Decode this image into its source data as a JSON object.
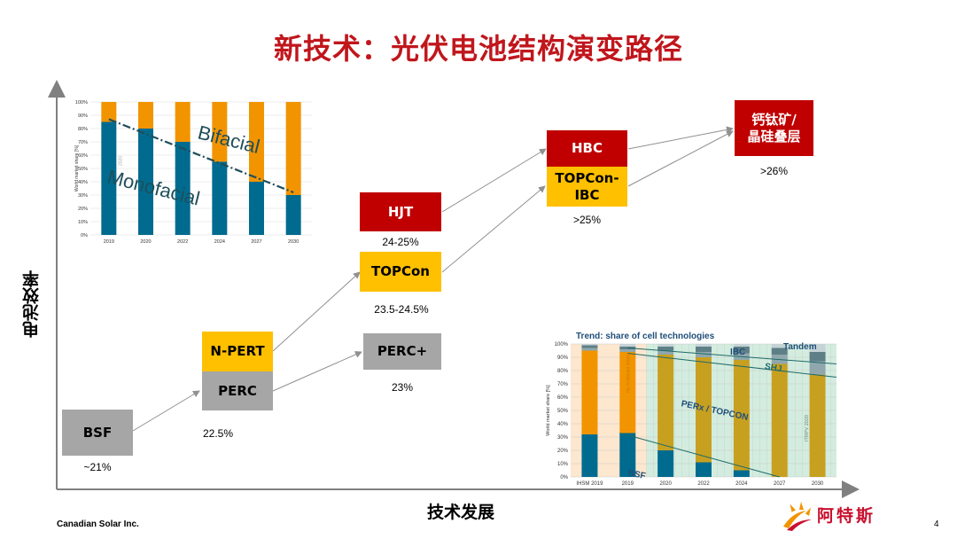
{
  "title": "新技术：光伏电池结构演变路径",
  "axes": {
    "y_label": "电池效率",
    "x_label": "技术发展"
  },
  "technologies": [
    {
      "id": "bsf",
      "label": "BSF",
      "color": "gray"
    },
    {
      "id": "n-pert",
      "label": "N-PERT",
      "color": "orange"
    },
    {
      "id": "perc",
      "label": "PERC",
      "color": "gray"
    },
    {
      "id": "hjt",
      "label": "HJT",
      "color": "red"
    },
    {
      "id": "topcon",
      "label": "TOPCon",
      "color": "orange"
    },
    {
      "id": "perc-plus",
      "label": "PERC+",
      "color": "gray"
    },
    {
      "id": "hbc",
      "label": "HBC",
      "color": "red"
    },
    {
      "id": "topcon-ibc",
      "label": "TOPCon-\nIBC",
      "color": "orange"
    },
    {
      "id": "perovskite",
      "label": "钙钛矿/\n晶硅叠层",
      "color": "red"
    }
  ],
  "efficiencies": {
    "bsf": "~21%",
    "perc": "22.5%",
    "hjt": "24-25%",
    "topcon": "23.5-24.5%",
    "perc_plus": "23%",
    "hbc": ">25%",
    "perovskite": ">26%"
  },
  "colors": {
    "title": "#c0161c",
    "gray": "#a6a6a6",
    "orange": "#ffc000",
    "red": "#c00000",
    "teal": "#006b8f",
    "chart_orange": "#f29400"
  },
  "inset_bifacial": {
    "chart_data": {
      "type": "bar",
      "categories": [
        "2019",
        "2020",
        "2022",
        "2024",
        "2027",
        "2030"
      ],
      "series": [
        {
          "name": "Monofacial",
          "values": [
            85,
            80,
            70,
            55,
            40,
            30
          ]
        },
        {
          "name": "Bifacial",
          "values": [
            15,
            20,
            30,
            45,
            60,
            70
          ]
        }
      ],
      "ylabel": "World market share [%]",
      "yticks": [
        "0%",
        "10%",
        "20%",
        "30%",
        "40%",
        "50%",
        "60%",
        "70%",
        "80%",
        "90%",
        "100%"
      ],
      "ylim": [
        0,
        100
      ],
      "annotations": [
        "Bifacial",
        "Monofacial"
      ],
      "watermark": "2020"
    }
  },
  "inset_technologies": {
    "chart_data": {
      "type": "bar",
      "title": "Trend: share of cell technologies",
      "categories": [
        "IHSM 2019",
        "2019",
        "2020",
        "2022",
        "2024",
        "2027",
        "2030"
      ],
      "series": [
        {
          "name": "BSF",
          "values": [
            32,
            33,
            20,
            11,
            5,
            0,
            0
          ]
        },
        {
          "name": "PERx / TOPCON",
          "values": [
            63,
            61,
            72,
            79,
            83,
            85,
            77
          ]
        },
        {
          "name": "SHJ",
          "values": [
            2,
            2,
            3,
            4,
            5,
            7,
            10
          ]
        },
        {
          "name": "IBC",
          "values": [
            2,
            2,
            3,
            4,
            5,
            5,
            7
          ]
        },
        {
          "name": "Tandem",
          "values": [
            1,
            2,
            2,
            2,
            2,
            3,
            6
          ]
        }
      ],
      "ylabel": "World market share [%]",
      "yticks": [
        "0%",
        "10%",
        "20%",
        "30%",
        "40%",
        "50%",
        "60%",
        "70%",
        "80%",
        "90%",
        "100%"
      ],
      "ylim": [
        0,
        100
      ],
      "annotations": [
        "BSF",
        "PERx / TOPCON",
        "SHJ",
        "IBC",
        "Tandem",
        "mc-Si Market share",
        "ITRPV 2020"
      ]
    }
  },
  "footer": {
    "company": "Canadian Solar Inc.",
    "page": "4",
    "logo_text": "阿特斯"
  }
}
